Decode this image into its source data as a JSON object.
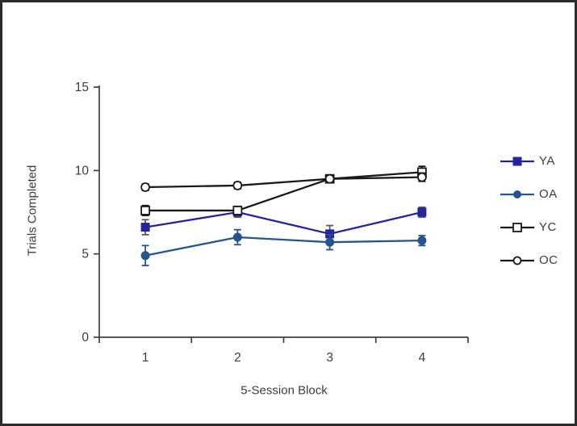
{
  "figure": {
    "background": "#ffffff",
    "border_color": "#2b2b2b"
  },
  "chart_data": {
    "type": "line",
    "title": "",
    "xlabel": "5-Session Block",
    "ylabel": "Trials Completed",
    "categories": [
      "1",
      "2",
      "3",
      "4"
    ],
    "ylim": [
      0,
      15
    ],
    "yticks": [
      0,
      5,
      10,
      15
    ],
    "grid": false,
    "legend_position": "right",
    "axis_color": "#3f3f3f",
    "text_color": "#3d3d3d",
    "series": [
      {
        "name": "YA",
        "marker": "square-filled",
        "color": "#24249f",
        "error_color": "#595959",
        "values": [
          6.6,
          7.5,
          6.2,
          7.5
        ],
        "errors": [
          0.45,
          0.3,
          0.5,
          0.3
        ]
      },
      {
        "name": "OA",
        "marker": "circle-filled",
        "color": "#27548a",
        "error_color": "#27548a",
        "values": [
          4.9,
          6.0,
          5.7,
          5.8
        ],
        "errors": [
          0.6,
          0.45,
          0.45,
          0.3
        ]
      },
      {
        "name": "YC",
        "marker": "square-open",
        "color": "#1a1a1a",
        "error_color": "#1a1a1a",
        "values": [
          7.6,
          7.6,
          9.5,
          9.9
        ],
        "errors": [
          0.3,
          0.25,
          0.2,
          0.35
        ]
      },
      {
        "name": "OC",
        "marker": "circle-open",
        "color": "#1a1a1a",
        "error_color": "#1a1a1a",
        "values": [
          9.0,
          9.1,
          9.5,
          9.6
        ],
        "errors": [
          0.2,
          0.2,
          0.2,
          0.25
        ]
      }
    ]
  }
}
